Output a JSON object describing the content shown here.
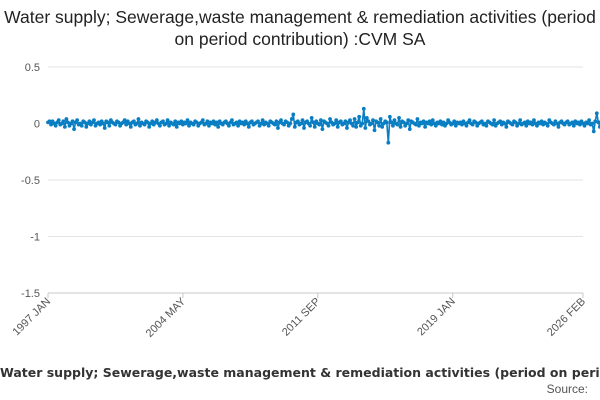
{
  "chart_data": {
    "type": "line",
    "title": "Water supply; Sewerage,waste management & remediation activities (period on period contribution) :CVM SA",
    "xlabel": "",
    "ylabel": "",
    "y_ticks": [
      "0.5",
      "0",
      "-0.5",
      "-1",
      "-1.5"
    ],
    "ylim": [
      -1.5,
      0.5
    ],
    "x_ticks": [
      "1997 JAN",
      "2004 MAY",
      "2011 SEP",
      "2019 JAN",
      "2026 FEB"
    ],
    "xlim": [
      "1997-01",
      "2026-02"
    ],
    "grid": true,
    "legend_position": "bottom",
    "series": [
      {
        "name": "Water supply; Sewerage,waste management & remediation activities (period on period contribution) :CVM SA",
        "color": "#0a7ec2",
        "x_start": "1997-01",
        "frequency": "monthly",
        "values": [
          0.01,
          0.02,
          -0.01,
          0.02,
          0.0,
          -0.02,
          0.01,
          0.03,
          -0.01,
          0.0,
          0.02,
          -0.03,
          0.04,
          0.01,
          -0.02,
          0.0,
          0.02,
          -0.05,
          0.01,
          0.03,
          -0.01,
          0.0,
          -0.02,
          0.02,
          0.01,
          -0.03,
          0.0,
          0.02,
          -0.01,
          0.01,
          0.03,
          -0.02,
          0.0,
          0.01,
          -0.01,
          0.02,
          0.0,
          -0.04,
          0.02,
          0.01,
          -0.02,
          0.03,
          0.01,
          0.0,
          -0.01,
          0.02,
          0.01,
          -0.02,
          0.0,
          0.01,
          0.03,
          -0.01,
          0.02,
          0.0,
          -0.03,
          0.01,
          0.02,
          -0.01,
          0.0,
          0.04,
          -0.02,
          0.01,
          0.0,
          -0.01,
          0.02,
          0.01,
          -0.03,
          0.0,
          0.02,
          -0.01,
          0.01,
          0.03,
          0.0,
          -0.02,
          0.01,
          0.02,
          -0.01,
          0.0,
          0.03,
          -0.02,
          0.01,
          0.0,
          -0.01,
          0.02,
          -0.03,
          0.01,
          0.0,
          0.02,
          -0.01,
          0.01,
          0.0,
          0.03,
          -0.02,
          0.01,
          0.0,
          -0.01,
          0.02,
          0.01,
          -0.02,
          0.0,
          0.01,
          0.03,
          -0.01,
          0.0,
          0.02,
          -0.02,
          0.01,
          0.0,
          0.02,
          -0.01,
          0.01,
          -0.03,
          0.02,
          0.0,
          -0.01,
          0.01,
          0.02,
          0.0,
          -0.02,
          0.01,
          0.03,
          -0.01,
          0.0,
          0.01,
          -0.02,
          0.02,
          0.0,
          0.01,
          -0.01,
          0.02,
          0.0,
          -0.03,
          0.01,
          0.02,
          -0.01,
          0.0,
          0.01,
          0.02,
          -0.02,
          0.0,
          0.03,
          -0.01,
          0.01,
          0.0,
          -0.02,
          0.02,
          0.01,
          0.0,
          -0.01,
          0.02,
          -0.04,
          0.01,
          0.03,
          0.0,
          -0.01,
          0.02,
          0.01,
          -0.02,
          0.0,
          0.04,
          0.08,
          -0.03,
          0.01,
          0.02,
          -0.01,
          0.0,
          0.03,
          -0.04,
          0.01,
          0.02,
          0.0,
          -0.02,
          0.05,
          0.01,
          -0.03,
          0.02,
          0.0,
          -0.01,
          0.03,
          -0.05,
          0.02,
          0.01,
          0.0,
          -0.02,
          0.04,
          0.01,
          -0.01,
          0.0,
          0.03,
          -0.03,
          0.01,
          0.02,
          -0.01,
          0.0,
          0.02,
          -0.04,
          0.01,
          0.03,
          0.0,
          -0.02,
          0.04,
          -0.03,
          0.01,
          0.06,
          -0.02,
          0.0,
          0.13,
          -0.04,
          0.05,
          0.02,
          -0.01,
          0.0,
          0.03,
          -0.06,
          0.02,
          0.01,
          -0.02,
          0.04,
          -0.03,
          0.0,
          0.02,
          0.01,
          -0.17,
          0.06,
          0.01,
          -0.02,
          0.03,
          0.0,
          -0.01,
          0.05,
          -0.03,
          0.02,
          0.01,
          -0.02,
          0.0,
          0.03,
          -0.05,
          0.02,
          0.01,
          0.0,
          -0.01,
          0.04,
          -0.02,
          0.01,
          0.0,
          0.02,
          -0.03,
          0.01,
          0.0,
          0.02,
          -0.01,
          0.03,
          0.0,
          -0.02,
          0.01,
          0.0,
          0.02,
          -0.01,
          0.01,
          -0.02,
          0.0,
          0.03,
          0.01,
          -0.01,
          0.0,
          0.02,
          -0.02,
          0.01,
          0.0,
          0.01,
          -0.01,
          0.02,
          0.0,
          -0.02,
          0.01,
          0.03,
          0.0,
          -0.01,
          0.02,
          0.01,
          -0.02,
          0.0,
          0.01,
          0.02,
          -0.01,
          0.0,
          -0.02,
          0.02,
          0.01,
          0.0,
          -0.01,
          0.03,
          -0.02,
          0.0,
          0.01,
          0.02,
          -0.01,
          0.01,
          0.0,
          -0.03,
          0.02,
          0.01,
          0.0,
          -0.01,
          0.02,
          0.01,
          -0.02,
          0.0,
          0.03,
          -0.01,
          0.0,
          0.01,
          -0.02,
          0.02,
          0.0,
          0.01,
          -0.01,
          0.03,
          0.0,
          -0.02,
          0.01,
          0.0,
          0.02,
          -0.01,
          0.01,
          0.0,
          -0.02,
          0.03,
          0.01,
          0.0,
          -0.01,
          0.02,
          0.0,
          -0.03,
          0.01,
          0.02,
          0.0,
          -0.01,
          0.01,
          0.02,
          -0.01,
          0.0,
          0.01,
          -0.02,
          0.02,
          0.0,
          0.01,
          -0.01,
          0.02,
          0.0,
          -0.02,
          0.01,
          0.0,
          0.03,
          -0.01,
          0.0,
          -0.07,
          0.02,
          0.09,
          0.01,
          -0.03,
          0.02,
          0.0,
          -0.01,
          0.04,
          -0.02,
          0.01,
          0.0,
          0.02,
          -0.01,
          0.01,
          -0.03,
          0.02,
          0.0,
          -0.01,
          0.01,
          0.03,
          -0.02,
          0.0,
          0.01,
          0.02,
          -0.01,
          0.0,
          -0.02,
          0.01,
          0.02,
          0.0,
          -0.01,
          0.03,
          0.01,
          -0.02,
          0.0,
          0.01,
          -0.01,
          0.02,
          0.0,
          0.01,
          -0.02,
          0.03,
          0.0,
          -0.01,
          0.02,
          0.01,
          0.0,
          -0.02,
          0.01,
          0.02,
          -0.01,
          0.0,
          0.03,
          0.01,
          -0.02,
          0.0,
          0.01,
          0.02,
          -0.01,
          0.0,
          -0.02,
          0.02,
          0.01,
          0.0,
          -0.01,
          0.03,
          0.0
        ]
      }
    ]
  },
  "source_label": "Source:"
}
